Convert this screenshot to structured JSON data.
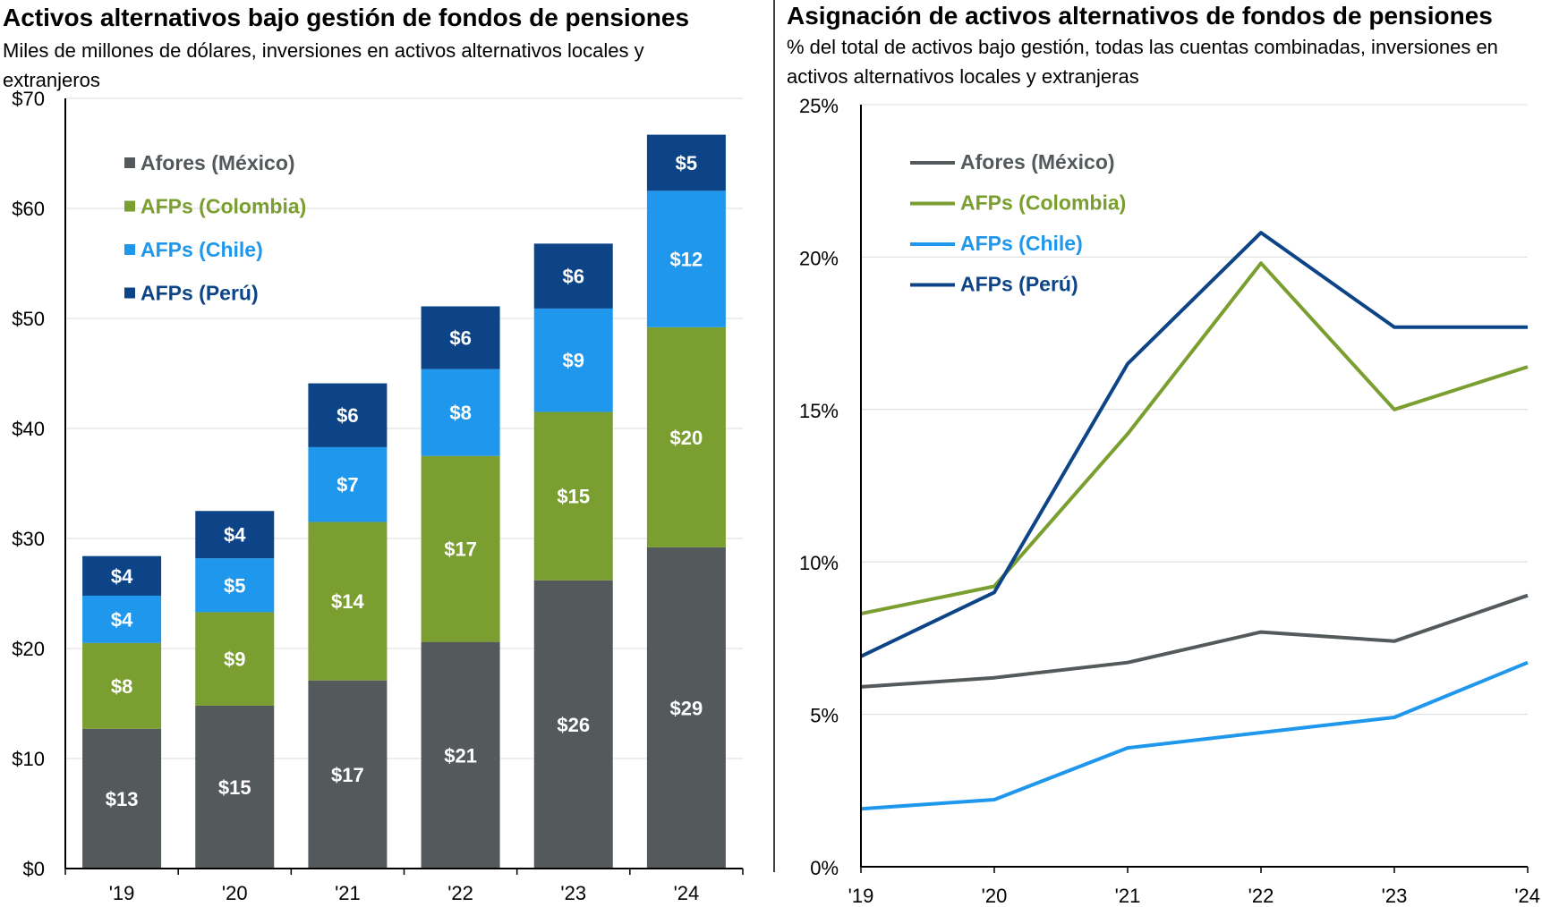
{
  "left_chart_title": "Activos alternativos bajo gestión de fondos de pensiones",
  "left_chart_subtitle": "Miles de millones de dólares, inversiones en activos alternativos locales y extranjeros",
  "right_chart_title": "Asignación de activos alternativos de fondos de pensiones",
  "right_chart_subtitle": "% del total de activos bajo gestión, todas las cuentas combinadas, inversiones en activos alternativos locales y extranjeras",
  "chart_data": [
    {
      "type": "bar",
      "stacked": true,
      "title": "Activos alternativos bajo gestión de fondos de pensiones",
      "subtitle": "Miles de millones de dólares, inversiones en activos alternativos locales y extranjeros",
      "categories": [
        "'19",
        "'20",
        "'21",
        "'22",
        "'23",
        "'24"
      ],
      "ylim": [
        0,
        70
      ],
      "yticks": [
        0,
        10,
        20,
        30,
        40,
        50,
        60,
        70
      ],
      "ytick_labels": [
        "$0",
        "$10",
        "$20",
        "$30",
        "$40",
        "$50",
        "$60",
        "$70"
      ],
      "grid": true,
      "legend_position": "top-left",
      "series": [
        {
          "name": "Afores (México)",
          "color": "#54595c",
          "values": [
            12.7,
            14.8,
            17.1,
            20.6,
            26.2,
            29.2
          ],
          "labels": [
            "$13",
            "$15",
            "$17",
            "$21",
            "$26",
            "$29"
          ]
        },
        {
          "name": "AFPs (Colombia)",
          "color": "#7a9e2f",
          "values": [
            7.8,
            8.5,
            14.4,
            16.9,
            15.3,
            20.0
          ],
          "labels": [
            "$8",
            "$9",
            "$14",
            "$17",
            "$15",
            "$20"
          ]
        },
        {
          "name": "AFPs (Chile)",
          "color": "#1e97ec",
          "values": [
            4.3,
            4.9,
            6.8,
            7.9,
            9.4,
            12.4
          ],
          "labels": [
            "$4",
            "$5",
            "$7",
            "$8",
            "$9",
            "$12"
          ]
        },
        {
          "name": "AFPs (Perú)",
          "color": "#0d4487",
          "values": [
            3.6,
            4.3,
            5.8,
            5.7,
            5.9,
            5.1
          ],
          "labels": [
            "$4",
            "$4",
            "$6",
            "$6",
            "$6",
            "$5"
          ]
        }
      ]
    },
    {
      "type": "line",
      "title": "Asignación de activos alternativos de fondos de pensiones",
      "subtitle": "% del total de activos bajo gestión, todas las cuentas combinadas, inversiones en activos alternativos locales y extranjeras",
      "x": [
        "'19",
        "'20",
        "'21",
        "'22",
        "'23",
        "'24"
      ],
      "ylim": [
        0,
        25
      ],
      "yticks": [
        0,
        5,
        10,
        15,
        20,
        25
      ],
      "ytick_labels": [
        "0%",
        "5%",
        "10%",
        "15%",
        "20%",
        "25%"
      ],
      "grid": true,
      "legend_position": "top-left",
      "series": [
        {
          "name": "Afores (México)",
          "color": "#54595c",
          "values": [
            5.9,
            6.2,
            6.7,
            7.7,
            7.4,
            8.9
          ]
        },
        {
          "name": "AFPs (Colombia)",
          "color": "#7a9e2f",
          "values": [
            8.3,
            9.2,
            14.2,
            19.8,
            15.0,
            16.4
          ]
        },
        {
          "name": "AFPs (Chile)",
          "color": "#1e97ec",
          "values": [
            1.9,
            2.2,
            3.9,
            4.4,
            4.9,
            6.7
          ]
        },
        {
          "name": "AFPs (Perú)",
          "color": "#0d4487",
          "values": [
            6.9,
            9.0,
            16.5,
            20.8,
            17.7,
            17.7
          ]
        }
      ]
    }
  ]
}
